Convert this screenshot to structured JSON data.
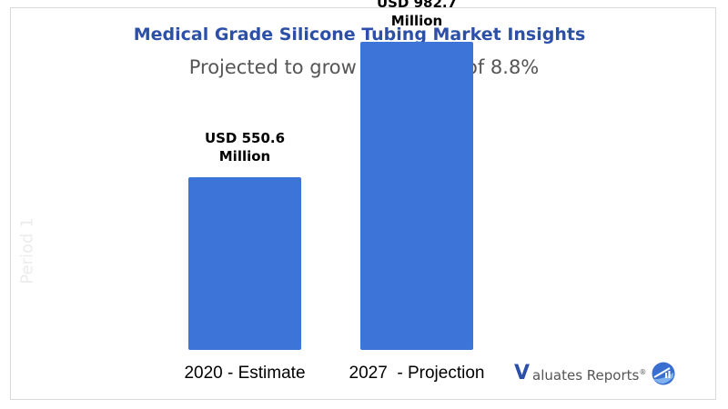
{
  "header": {
    "title": "Medical Grade Silicone Tubing Market Insights",
    "subtitle": "Projected to grow at a CAGR of 8.8%"
  },
  "watermark": "Period 1",
  "logo": {
    "mark": "V",
    "text": "aluates Reports",
    "registered": "®",
    "icon": "chart-circle-icon"
  },
  "colors": {
    "bar": "#3c74d8",
    "title": "#2c50a8",
    "subtitle": "#555555"
  },
  "chart_data": {
    "type": "bar",
    "title": "Medical Grade Silicone Tubing Market Insights",
    "subtitle": "Projected to grow at a CAGR of 8.8%",
    "categories": [
      "2020 - Estimate",
      "2027  - Projection"
    ],
    "values": [
      550.6,
      982.7
    ],
    "unit": "USD Million",
    "data_labels": [
      [
        "USD 550.6",
        "Million"
      ],
      [
        "USD 982.7",
        "Million"
      ]
    ],
    "xlabel": "",
    "ylabel": "",
    "ylim": [
      0,
      1000
    ],
    "grid": false,
    "legend": "none"
  }
}
